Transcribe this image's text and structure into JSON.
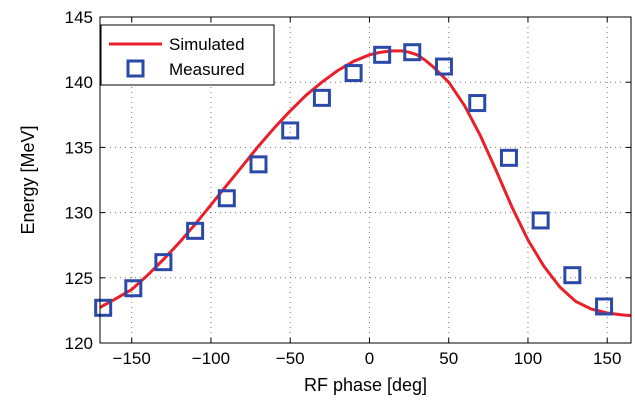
{
  "chart_data": {
    "type": "line",
    "xlabel": "RF phase  [deg]",
    "ylabel": "Energy  [MeV]",
    "xlim": [
      -170,
      165
    ],
    "ylim": [
      120,
      145
    ],
    "xticks": [
      -150,
      -100,
      -50,
      0,
      50,
      100,
      150
    ],
    "yticks": [
      120,
      125,
      130,
      135,
      140,
      145
    ],
    "grid": true,
    "legend_position": "top-left",
    "series": [
      {
        "name": "Simulated",
        "style": "line",
        "color": "#e8202a",
        "x": [
          -175,
          -160,
          -150,
          -140,
          -130,
          -120,
          -110,
          -100,
          -90,
          -80,
          -70,
          -60,
          -50,
          -40,
          -30,
          -20,
          -10,
          0,
          5,
          10,
          15,
          20,
          25,
          30,
          35,
          40,
          50,
          60,
          70,
          80,
          90,
          100,
          110,
          120,
          130,
          140,
          150,
          160,
          165
        ],
        "y": [
          122.4,
          123.4,
          124.1,
          125.2,
          126.4,
          127.7,
          129.1,
          130.6,
          132.1,
          133.6,
          135.1,
          136.5,
          137.8,
          139.0,
          140.0,
          140.9,
          141.6,
          142.1,
          142.25,
          142.35,
          142.4,
          142.4,
          142.3,
          142.1,
          141.7,
          141.2,
          140.0,
          138.2,
          135.9,
          133.2,
          130.4,
          127.9,
          125.9,
          124.3,
          123.2,
          122.6,
          122.3,
          122.15,
          122.1
        ]
      },
      {
        "name": "Measured",
        "style": "marker",
        "color": "#2b4aa8",
        "x": [
          -168,
          -149,
          -130,
          -110,
          -90,
          -70,
          -50,
          -30,
          -10,
          8,
          27,
          47,
          68,
          88,
          108,
          128,
          148
        ],
        "y": [
          122.7,
          124.2,
          126.2,
          128.6,
          131.1,
          133.7,
          136.3,
          138.8,
          140.7,
          142.1,
          142.3,
          141.2,
          138.4,
          134.2,
          129.4,
          125.2,
          122.8
        ]
      }
    ]
  }
}
